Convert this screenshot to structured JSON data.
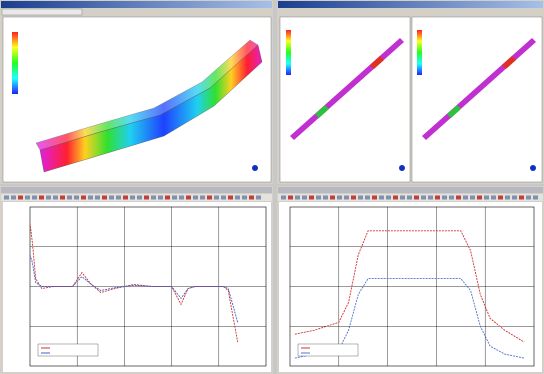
{
  "plots": [
    {
      "xlim": [
        0,
        5
      ],
      "ylim": [
        -2,
        2
      ],
      "series": [
        {
          "color": "#d03030",
          "x": [
            0,
            0.05,
            0.12,
            0.25,
            0.5,
            0.9,
            1.1,
            1.3,
            1.5,
            1.8,
            2.2,
            2.6,
            3.0,
            3.2,
            3.35,
            3.5,
            3.8,
            4.1,
            4.2,
            4.4
          ],
          "values": [
            1.6,
            1.1,
            0.2,
            -0.05,
            0.0,
            0.0,
            0.35,
            0.05,
            -0.15,
            -0.05,
            0.05,
            0.0,
            0.0,
            -0.45,
            -0.05,
            0.0,
            0.0,
            0.0,
            -0.1,
            -1.4
          ]
        },
        {
          "color": "#4060c0",
          "x": [
            0,
            0.05,
            0.12,
            0.25,
            0.5,
            0.9,
            1.1,
            1.3,
            1.5,
            1.8,
            2.2,
            2.6,
            3.0,
            3.2,
            3.35,
            3.5,
            3.8,
            4.1,
            4.2,
            4.4
          ],
          "values": [
            0.8,
            0.6,
            0.1,
            0.0,
            0.0,
            0.0,
            0.25,
            0.05,
            -0.1,
            -0.03,
            0.03,
            0.0,
            0.0,
            -0.3,
            -0.05,
            0.0,
            0.0,
            0.0,
            -0.05,
            -0.9
          ]
        }
      ]
    },
    {
      "xlim": [
        0,
        5
      ],
      "ylim": [
        0,
        4
      ],
      "series": [
        {
          "color": "#d03030",
          "x": [
            0.1,
            0.5,
            1.0,
            1.2,
            1.4,
            1.6,
            2.0,
            2.5,
            3.0,
            3.5,
            3.7,
            3.9,
            4.1,
            4.4,
            4.8
          ],
          "values": [
            0.8,
            0.9,
            1.1,
            1.6,
            2.8,
            3.4,
            3.4,
            3.4,
            3.4,
            3.4,
            2.9,
            1.8,
            1.2,
            0.9,
            0.6
          ]
        },
        {
          "color": "#5070d0",
          "x": [
            0.1,
            0.5,
            1.0,
            1.2,
            1.4,
            1.6,
            2.0,
            2.5,
            3.0,
            3.5,
            3.7,
            3.9,
            4.1,
            4.4,
            4.8
          ],
          "values": [
            0.2,
            0.3,
            0.4,
            0.9,
            1.8,
            2.2,
            2.2,
            2.2,
            2.2,
            2.2,
            1.9,
            1.0,
            0.5,
            0.3,
            0.2
          ]
        }
      ]
    }
  ]
}
